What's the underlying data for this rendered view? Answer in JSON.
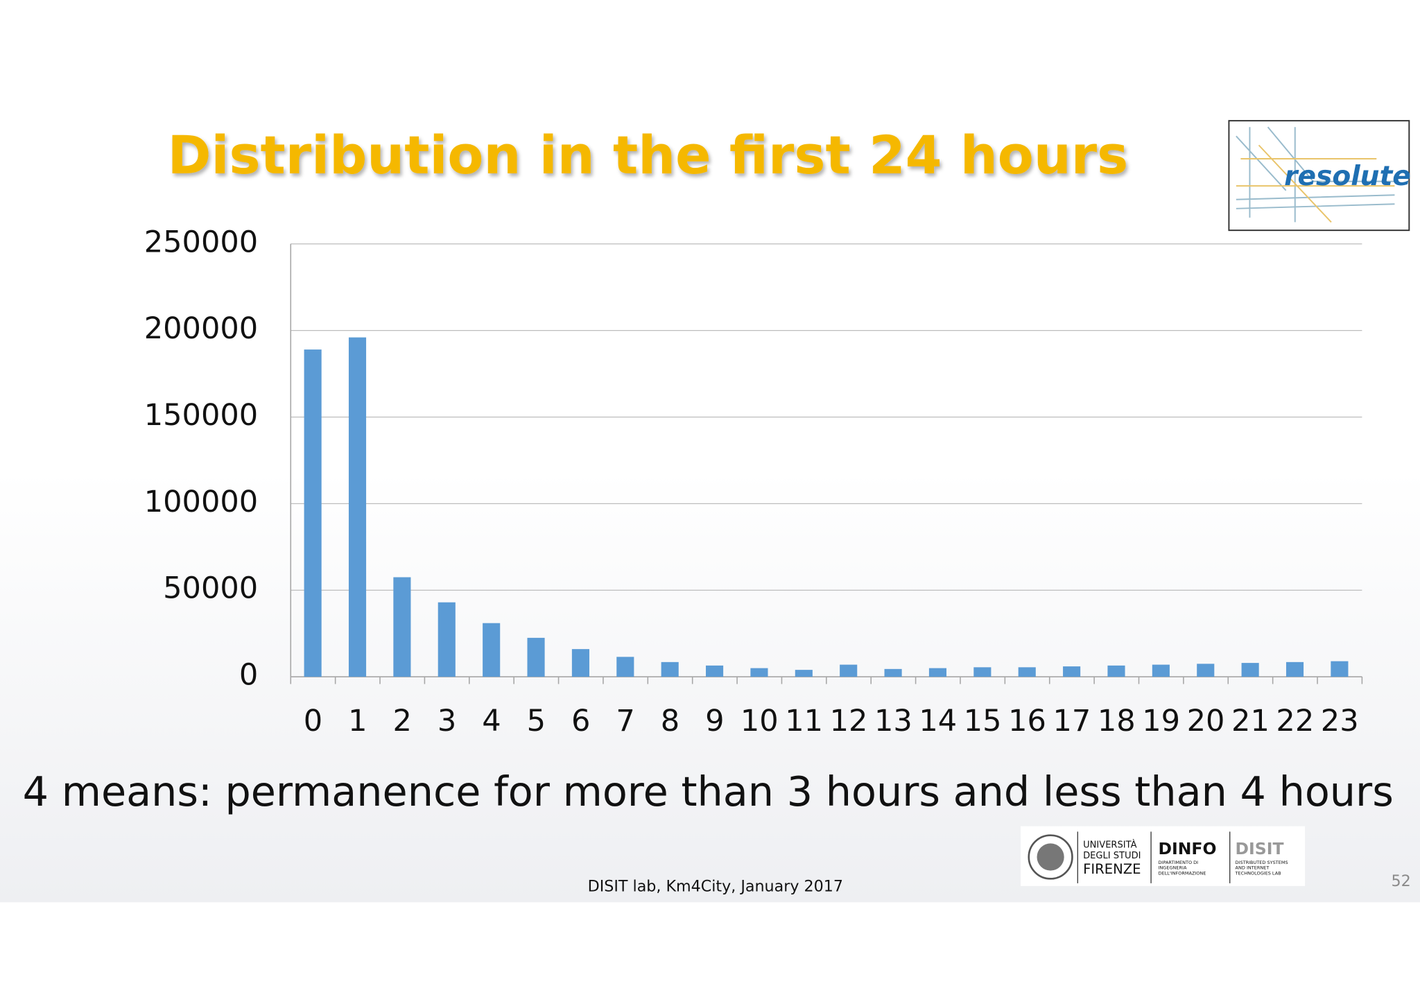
{
  "chart_data": {
    "type": "bar",
    "title": "Distribution in the first 24 hours",
    "categories": [
      "0",
      "1",
      "2",
      "3",
      "4",
      "5",
      "6",
      "7",
      "8",
      "9",
      "10",
      "11",
      "12",
      "13",
      "14",
      "15",
      "16",
      "17",
      "18",
      "19",
      "20",
      "21",
      "22",
      "23"
    ],
    "values": [
      189000,
      196000,
      57500,
      43000,
      31000,
      22500,
      16000,
      11500,
      8500,
      6500,
      5000,
      4000,
      7000,
      4500,
      5000,
      5500,
      5500,
      6000,
      6500,
      7000,
      7500,
      8000,
      8500,
      9000
    ],
    "color": "#5b9bd5",
    "ylim": [
      0,
      250000
    ],
    "yticks": [
      0,
      50000,
      100000,
      150000,
      200000,
      250000
    ],
    "grid": true
  },
  "note": "4 means: permanence for more than 3 hours and less than 4 hours",
  "footer": "DISIT lab, Km4City, January 2017",
  "page_number": "52",
  "logos": {
    "project": "resolute",
    "university": [
      "UNIVERSITÀ",
      "DEGLI STUDI",
      "FIRENZE"
    ],
    "dinfo": "DINFO",
    "dinfo_sub": [
      "DIPARTIMENTO DI",
      "INGEGNERIA",
      "DELL'INFORMAZIONE"
    ],
    "disit": "DISIT",
    "disit_sub": [
      "DISTRIBUTED SYSTEMS",
      "AND INTERNET",
      "TECHNOLOGIES LAB"
    ]
  }
}
